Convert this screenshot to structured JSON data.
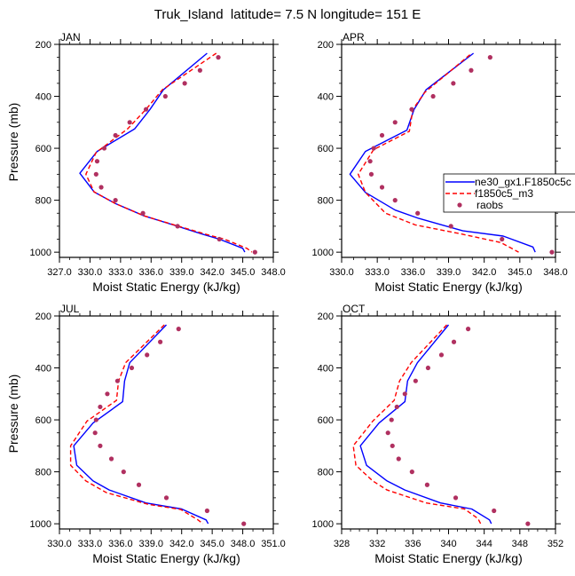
{
  "title": "Truk_Island  latitude= 7.5 N longitude= 151 E",
  "colors": {
    "model1": "#0000ff",
    "model2": "#ff0000",
    "obs": "#b03060",
    "axis": "#000000"
  },
  "legend": {
    "placement": "right-middle of APR panel",
    "entries": [
      {
        "label": "ne30_gx1.F1850c5c",
        "style": "solid-line",
        "color": "#0000ff"
      },
      {
        "label": "f1850c5_m3",
        "style": "dashed-line",
        "color": "#ff0000"
      },
      {
        "label": "raobs",
        "style": "marker",
        "color": "#b03060"
      }
    ]
  },
  "chart_data": [
    {
      "type": "line",
      "title": "JAN",
      "xlabel": "Moist Static Energy (kJ/kg)",
      "ylabel": "Pressure (mb)",
      "xlim": [
        327,
        348
      ],
      "ylim": [
        1020,
        200
      ],
      "xticks": [
        "327.0",
        "330.0",
        "333.0",
        "336.0",
        "339.0",
        "342.0",
        "345.0",
        "348.0"
      ],
      "xtick_values": [
        327,
        330,
        333,
        336,
        339,
        342,
        345,
        348
      ],
      "yticks": [
        "200",
        "400",
        "600",
        "800",
        "1000"
      ],
      "ytick_values": [
        200,
        400,
        600,
        800,
        1000
      ],
      "series": [
        {
          "name": "ne30_gx1.F1850c5c",
          "style": "solid",
          "p": [
            234,
            375,
            450,
            525,
            612,
            696,
            768,
            813,
            860,
            900,
            930,
            950,
            985,
            1000
          ],
          "values": [
            341.5,
            337.2,
            335.9,
            334.4,
            330.7,
            329.0,
            330.4,
            332.5,
            335.3,
            338.6,
            341.0,
            342.7,
            345.0,
            345.2
          ]
        },
        {
          "name": "f1850c5_m3",
          "style": "dashed",
          "p": [
            234,
            375,
            450,
            525,
            616,
            700,
            768,
            813,
            860,
            900,
            930,
            950,
            985,
            1000
          ],
          "values": [
            342.4,
            337.1,
            335.5,
            333.7,
            330.6,
            329.6,
            330.4,
            332.5,
            335.3,
            338.7,
            341.3,
            343.2,
            345.4,
            345.9
          ]
        },
        {
          "name": "raobs",
          "style": "markers",
          "p": [
            250,
            300,
            350,
            400,
            450,
            500,
            550,
            600,
            650,
            700,
            750,
            800,
            850,
            900,
            950,
            1000
          ],
          "values": [
            342.6,
            340.8,
            339.3,
            337.4,
            335.5,
            333.9,
            332.5,
            331.4,
            330.7,
            330.6,
            331.1,
            332.5,
            335.2,
            338.6,
            342.7,
            346.2
          ]
        }
      ]
    },
    {
      "type": "line",
      "title": "APR",
      "xlabel": "Moist Static Energy (kJ/kg)",
      "ylabel": "",
      "xlim": [
        330,
        348
      ],
      "ylim": [
        1020,
        200
      ],
      "xticks": [
        "330.0",
        "333.0",
        "336.0",
        "339.0",
        "342.0",
        "345.0",
        "348.0"
      ],
      "xtick_values": [
        330,
        333,
        336,
        339,
        342,
        345,
        348
      ],
      "yticks": [
        "200",
        "400",
        "600",
        "800",
        "1000"
      ],
      "ytick_values": [
        200,
        400,
        600,
        800,
        1000
      ],
      "series": [
        {
          "name": "ne30_gx1.F1850c5c",
          "style": "solid",
          "p": [
            234,
            375,
            450,
            530,
            612,
            700,
            770,
            838,
            870,
            918,
            938,
            980,
            1000
          ],
          "values": [
            341.1,
            337.1,
            336.1,
            335.5,
            332.0,
            330.7,
            332.0,
            334.5,
            336.5,
            340.2,
            343.6,
            346.1,
            346.3
          ]
        },
        {
          "name": "f1850c5_m3",
          "style": "dashed",
          "p": [
            240,
            385,
            450,
            535,
            605,
            700,
            770,
            850,
            895,
            929,
            963,
            1000
          ],
          "values": [
            340.8,
            337.0,
            336.0,
            335.7,
            332.7,
            331.4,
            332.0,
            333.7,
            336.2,
            340.0,
            343.4,
            344.9
          ]
        },
        {
          "name": "raobs",
          "style": "markers",
          "p": [
            250,
            300,
            350,
            400,
            450,
            500,
            550,
            600,
            650,
            700,
            750,
            800,
            850,
            900,
            950,
            1000
          ],
          "values": [
            342.5,
            340.9,
            339.4,
            337.7,
            335.9,
            334.5,
            333.4,
            332.7,
            332.4,
            332.5,
            333.4,
            334.5,
            336.4,
            339.2,
            343.5,
            347.7
          ]
        }
      ]
    },
    {
      "type": "line",
      "title": "JUL",
      "xlabel": "Moist Static Energy (kJ/kg)",
      "ylabel": "Pressure (mb)",
      "xlim": [
        330,
        351
      ],
      "ylim": [
        1020,
        200
      ],
      "xticks": [
        "330.0",
        "333.0",
        "336.0",
        "339.0",
        "342.0",
        "345.0",
        "348.0",
        "351.0"
      ],
      "xtick_values": [
        330,
        333,
        336,
        339,
        342,
        345,
        348,
        351
      ],
      "yticks": [
        "200",
        "400",
        "600",
        "800",
        "1000"
      ],
      "ytick_values": [
        200,
        400,
        600,
        800,
        1000
      ],
      "series": [
        {
          "name": "ne30_gx1.F1850c5c",
          "style": "solid",
          "p": [
            234,
            380,
            450,
            530,
            612,
            700,
            775,
            835,
            870,
            920,
            943,
            985,
            1000
          ],
          "values": [
            340.5,
            336.9,
            336.4,
            336.2,
            333.3,
            331.4,
            331.7,
            333.3,
            334.9,
            338.5,
            342.0,
            344.4,
            344.6
          ]
        },
        {
          "name": "f1850c5_m3",
          "style": "dashed",
          "p": [
            234,
            380,
            450,
            525,
            605,
            700,
            775,
            835,
            880,
            925,
            945,
            985,
            1000
          ],
          "values": [
            340.3,
            336.5,
            335.8,
            335.6,
            332.7,
            331.1,
            331.1,
            332.6,
            334.6,
            338.7,
            341.9,
            343.6,
            344.1
          ]
        },
        {
          "name": "raobs",
          "style": "markers",
          "p": [
            250,
            300,
            350,
            400,
            450,
            500,
            550,
            600,
            650,
            700,
            750,
            800,
            850,
            900,
            950,
            1000
          ],
          "values": [
            341.7,
            339.9,
            338.6,
            337.1,
            335.7,
            334.7,
            334.0,
            333.6,
            333.5,
            334.0,
            335.1,
            336.3,
            337.8,
            340.5,
            344.5,
            348.1
          ]
        }
      ]
    },
    {
      "type": "line",
      "title": "OCT",
      "xlabel": "Moist Static Energy (kJ/kg)",
      "ylabel": "",
      "xlim": [
        328,
        352
      ],
      "ylim": [
        1020,
        200
      ],
      "xticks": [
        "328",
        "332",
        "336",
        "340",
        "344",
        "348",
        "352"
      ],
      "xtick_values": [
        328,
        332,
        336,
        340,
        344,
        348,
        352
      ],
      "yticks": [
        "200",
        "400",
        "600",
        "800",
        "1000"
      ],
      "ytick_values": [
        200,
        400,
        600,
        800,
        1000
      ],
      "series": [
        {
          "name": "ne30_gx1.F1850c5c",
          "style": "solid",
          "p": [
            234,
            380,
            450,
            530,
            612,
            700,
            775,
            835,
            870,
            920,
            943,
            985,
            1000
          ],
          "values": [
            340.0,
            336.5,
            335.4,
            335.1,
            332.2,
            330.1,
            330.8,
            333.1,
            335.1,
            339.1,
            342.6,
            344.6,
            344.8
          ]
        },
        {
          "name": "f1850c5_m3",
          "style": "dashed",
          "p": [
            234,
            380,
            450,
            525,
            605,
            700,
            775,
            835,
            870,
            920,
            943,
            980,
            1000
          ],
          "values": [
            339.8,
            335.8,
            334.5,
            333.9,
            331.5,
            329.3,
            329.6,
            331.5,
            333.1,
            337.5,
            341.8,
            343.3,
            343.6
          ]
        },
        {
          "name": "raobs",
          "style": "markers",
          "p": [
            250,
            300,
            350,
            400,
            450,
            500,
            550,
            600,
            650,
            700,
            750,
            800,
            850,
            900,
            950,
            1000
          ],
          "values": [
            342.2,
            340.6,
            339.2,
            337.7,
            336.3,
            335.1,
            334.2,
            333.6,
            333.2,
            333.7,
            334.4,
            335.9,
            337.6,
            340.8,
            345.1,
            348.9
          ]
        }
      ]
    }
  ]
}
